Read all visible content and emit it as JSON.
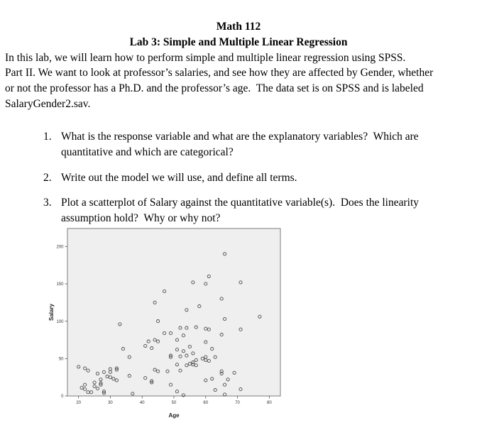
{
  "doc": {
    "title_line1": "Math 112",
    "title_line2": "Lab 3: Simple and Multiple Linear Regression",
    "paragraph_lines": [
      "In this lab, we will learn how to perform simple and multiple linear regression using SPSS.",
      "Part II. We want to look at professor’s salaries, and see how they are affected by Gender, whether",
      "or not the professor has a Ph.D. and the professor’s age.  The data set is on SPSS and is labeled",
      "SalaryGender2.sav."
    ],
    "list": [
      {
        "number": "1.",
        "lines": [
          "What is the response variable and what are the explanatory variables?  Which are",
          "quantitative and which are categorical?"
        ]
      },
      {
        "number": "2.",
        "lines": [
          "Write out the model we will use, and define all terms."
        ]
      },
      {
        "number": "3.",
        "lines": [
          "Plot a scatterplot of Salary against the quantitative variable(s).  Does the linearity",
          "assumption hold?  Why or why not?"
        ]
      }
    ]
  },
  "chart_data": {
    "type": "scatter",
    "title": "",
    "xlabel": "Age",
    "ylabel": "Salary",
    "xlim": [
      16.5,
      83.5
    ],
    "ylim": [
      0,
      224
    ],
    "x_ticks": [
      20,
      30,
      40,
      50,
      60,
      70,
      80
    ],
    "y_ticks": [
      0,
      50,
      100,
      150,
      200
    ],
    "grid": false,
    "legend": "none",
    "marker": "open-circle",
    "colors": {
      "panel_bg": "#efefef",
      "frame": "#8f8f8f",
      "marker_stroke": "#4a4a4a",
      "tick_text": "#333333"
    },
    "points": [
      [
        66,
        190
      ],
      [
        61,
        160
      ],
      [
        56,
        152
      ],
      [
        71,
        152
      ],
      [
        60,
        150
      ],
      [
        47,
        140
      ],
      [
        65,
        130
      ],
      [
        44,
        125
      ],
      [
        58,
        120
      ],
      [
        54,
        115
      ],
      [
        77,
        106
      ],
      [
        66,
        103
      ],
      [
        45,
        100
      ],
      [
        33,
        96
      ],
      [
        57,
        92
      ],
      [
        52,
        91
      ],
      [
        54,
        91
      ],
      [
        60,
        90
      ],
      [
        61,
        89
      ],
      [
        71,
        89
      ],
      [
        47,
        84
      ],
      [
        49,
        84
      ],
      [
        65,
        82
      ],
      [
        53,
        81
      ],
      [
        42,
        73
      ],
      [
        44,
        75
      ],
      [
        45,
        73
      ],
      [
        51,
        75
      ],
      [
        60,
        72
      ],
      [
        43,
        64
      ],
      [
        41,
        67
      ],
      [
        34,
        63
      ],
      [
        55,
        66
      ],
      [
        62,
        63
      ],
      [
        51,
        62
      ],
      [
        53,
        60
      ],
      [
        56,
        57
      ],
      [
        54,
        54
      ],
      [
        52,
        53
      ],
      [
        36,
        52
      ],
      [
        49,
        54
      ],
      [
        49,
        52
      ],
      [
        63,
        52
      ],
      [
        59,
        50
      ],
      [
        60,
        52
      ],
      [
        60,
        48
      ],
      [
        61,
        47
      ],
      [
        57,
        48
      ],
      [
        56,
        45
      ],
      [
        55,
        43
      ],
      [
        56,
        42
      ],
      [
        54,
        41
      ],
      [
        57,
        41
      ],
      [
        51,
        42
      ],
      [
        20,
        39
      ],
      [
        22,
        37
      ],
      [
        23,
        34
      ],
      [
        26,
        30
      ],
      [
        28,
        32
      ],
      [
        30,
        36
      ],
      [
        32,
        37
      ],
      [
        32,
        35
      ],
      [
        30,
        32
      ],
      [
        29,
        26
      ],
      [
        30,
        25
      ],
      [
        31,
        23
      ],
      [
        27,
        22
      ],
      [
        25,
        18
      ],
      [
        27,
        17
      ],
      [
        27,
        15
      ],
      [
        22,
        15
      ],
      [
        21,
        11
      ],
      [
        22,
        9
      ],
      [
        23,
        5
      ],
      [
        24,
        5
      ],
      [
        26,
        10
      ],
      [
        25,
        13
      ],
      [
        28,
        6
      ],
      [
        28,
        4
      ],
      [
        48,
        33
      ],
      [
        52,
        34
      ],
      [
        44,
        35
      ],
      [
        45,
        33
      ],
      [
        41,
        24
      ],
      [
        43,
        20
      ],
      [
        43,
        18
      ],
      [
        49,
        15
      ],
      [
        51,
        6
      ],
      [
        53,
        1
      ],
      [
        37,
        3
      ],
      [
        36,
        27
      ],
      [
        62,
        23
      ],
      [
        60,
        21
      ],
      [
        63,
        8
      ],
      [
        32,
        21
      ],
      [
        65,
        33
      ],
      [
        65,
        30
      ],
      [
        69,
        31
      ],
      [
        67,
        22
      ],
      [
        66,
        15
      ],
      [
        66,
        2
      ],
      [
        71,
        9
      ]
    ]
  }
}
